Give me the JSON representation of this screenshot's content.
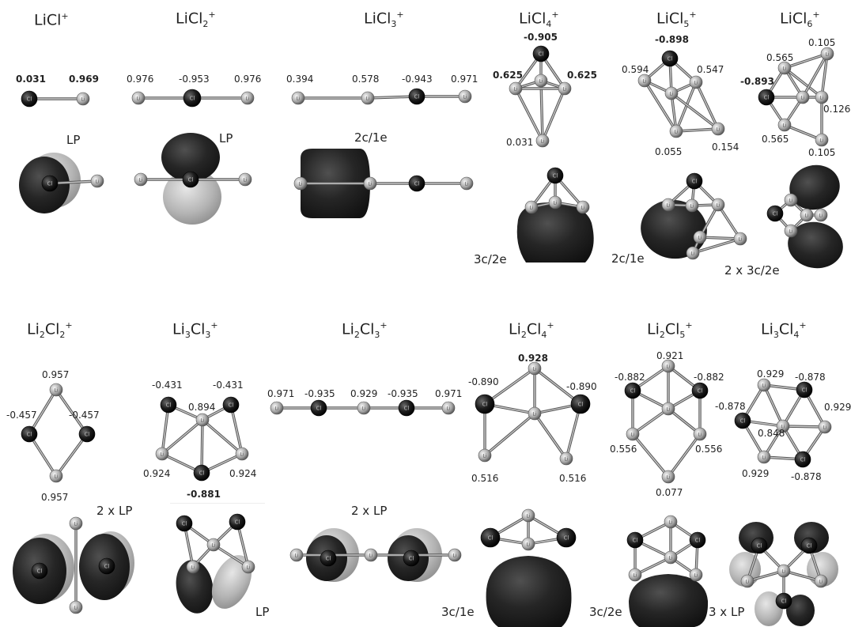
{
  "titles": {
    "t1": {
      "a": "LiCl",
      "sub": "",
      "sup": "+"
    },
    "t2": {
      "a": "LiCl",
      "sub": "2",
      "sup": "+"
    },
    "t3": {
      "a": "LiCl",
      "sub": "3",
      "sup": "+"
    },
    "t4": {
      "a": "LiCl",
      "sub": "4",
      "sup": "+"
    },
    "t5": {
      "a": "LiCl",
      "sub": "5",
      "sup": "+"
    },
    "t6": {
      "a": "LiCl",
      "sub": "6",
      "sup": "+"
    },
    "b1": {
      "a": "Li",
      "sub1": "2",
      "b": "Cl",
      "sub": "2",
      "sup": "+"
    },
    "b2": {
      "a": "Li",
      "sub1": "3",
      "b": "Cl",
      "sub": "3",
      "sup": "+"
    },
    "b3": {
      "a": "Li",
      "sub1": "2",
      "b": "Cl",
      "sub": "3",
      "sup": "+"
    },
    "b4": {
      "a": "Li",
      "sub1": "2",
      "b": "Cl",
      "sub": "4",
      "sup": "+"
    },
    "b5": {
      "a": "Li",
      "sub1": "2",
      "b": "Cl",
      "sub": "5",
      "sup": "+"
    },
    "b6": {
      "a": "Li",
      "sub1": "3",
      "b": "Cl",
      "sub": "4",
      "sup": "+"
    }
  },
  "charges": {
    "a1": [
      "0.031",
      "0.969"
    ],
    "a2": [
      "0.976",
      "-0.953",
      "0.976"
    ],
    "a3": [
      "0.394",
      "0.578",
      "-0.943",
      "0.971"
    ],
    "a4": [
      "-0.905",
      "0.625",
      "0.625",
      "0.031"
    ],
    "a5": [
      "-0.898",
      "0.594",
      "0.547",
      "0.055",
      "0.154"
    ],
    "a6": [
      "0.105",
      "0.565",
      "-0.893",
      "0.126",
      "0.565",
      "0.105"
    ],
    "b1": [
      "0.957",
      "-0.457",
      "-0.457",
      "0.957"
    ],
    "b2": [
      "-0.431",
      "-0.431",
      "0.894",
      "0.924",
      "0.924",
      "-0.881"
    ],
    "b3": [
      "0.971",
      "-0.935",
      "0.929",
      "-0.935",
      "0.971"
    ],
    "b4": [
      "0.928",
      "-0.890",
      "-0.890",
      "0.516",
      "0.516"
    ],
    "b5": [
      "0.921",
      "-0.882",
      "-0.882",
      "0.556",
      "0.556",
      "0.077"
    ],
    "b6": [
      "0.929",
      "-0.878",
      "-0.878",
      "0.929",
      "0.848",
      "0.929",
      "-0.878"
    ]
  },
  "nbo": {
    "a1": "LP",
    "a2": "LP",
    "a3": "2c/1e",
    "a4": "3c/2e",
    "a5": "2c/1e",
    "a6": "2 x 3c/2e",
    "b1": "2 x LP",
    "b2": "LP",
    "b3": "2 x LP",
    "b4": "3c/1e",
    "b5": "3c/2e",
    "b6": "3 x LP"
  },
  "atom_symbols": {
    "li": "Li",
    "cl": "Cl"
  }
}
